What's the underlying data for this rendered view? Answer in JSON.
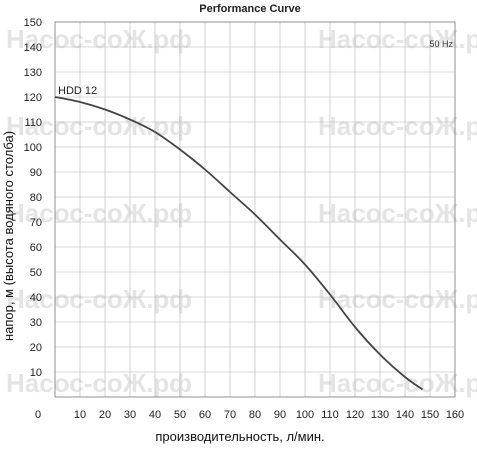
{
  "chart_data": {
    "type": "line",
    "title": "Performance Curve",
    "xlabel": "производительность, л/мин.",
    "ylabel": "напор, м (высота водяного столба)",
    "xlim": [
      0,
      160
    ],
    "ylim": [
      0,
      150
    ],
    "x_ticks": [
      "0",
      "10",
      "20",
      "30",
      "40",
      "50",
      "60",
      "70",
      "80",
      "90",
      "100",
      "110",
      "120",
      "130",
      "140",
      "150",
      "160"
    ],
    "y_ticks": [
      "10",
      "20",
      "30",
      "40",
      "50",
      "60",
      "70",
      "80",
      "90",
      "100",
      "110",
      "120",
      "130",
      "140",
      "150"
    ],
    "grid": true,
    "series": [
      {
        "name": "HDD 12",
        "x": [
          0,
          10,
          20,
          30,
          40,
          50,
          60,
          70,
          80,
          90,
          100,
          110,
          120,
          130,
          140,
          147
        ],
        "y": [
          120,
          118,
          115,
          111,
          106,
          99,
          91,
          82,
          73,
          63,
          53,
          41,
          28,
          17,
          8,
          3
        ],
        "color": "#444444"
      }
    ],
    "annotations": [
      {
        "text": "HDD 12"
      },
      {
        "text": "50 Hz"
      }
    ]
  },
  "watermark": "Насос-соЖ.рф"
}
